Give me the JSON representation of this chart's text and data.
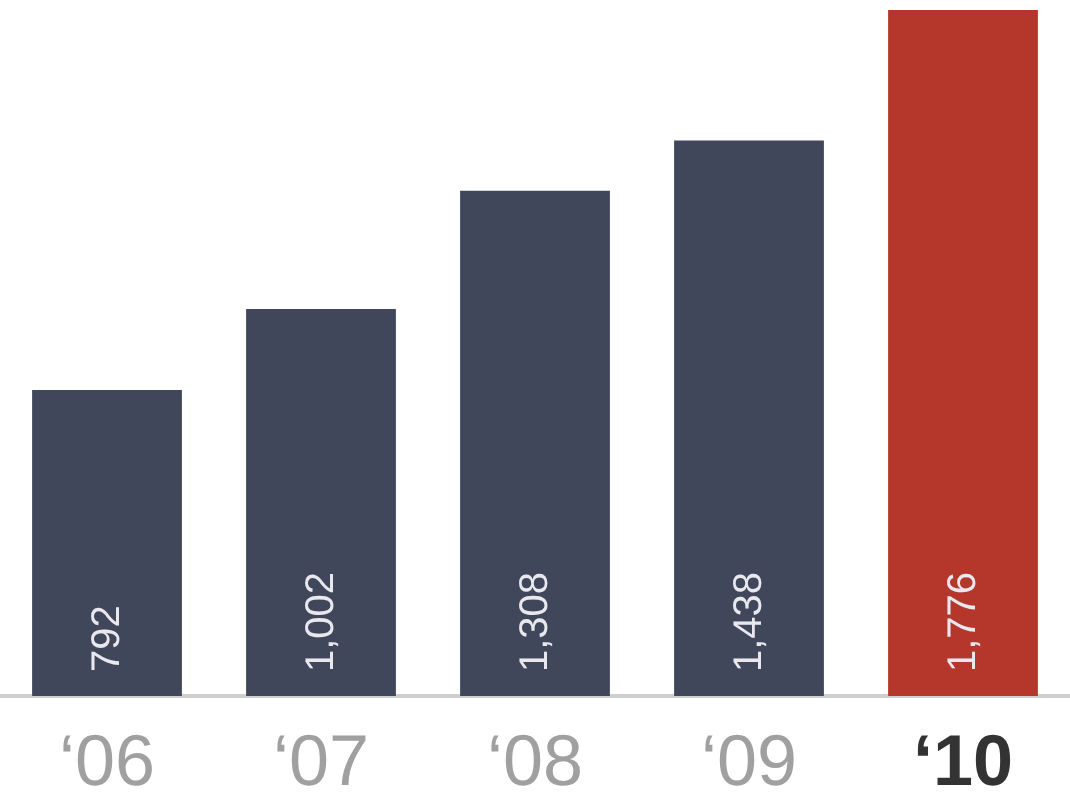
{
  "chart_data": {
    "type": "bar",
    "categories": [
      "‘06",
      "‘07",
      "‘08",
      "‘09",
      "‘10"
    ],
    "values": [
      792,
      1002,
      1308,
      1438,
      1776
    ],
    "value_labels": [
      "792",
      "1,002",
      "1,308",
      "1,438",
      "1,776"
    ],
    "colors": [
      "#41475a",
      "#41475a",
      "#41475a",
      "#41475a",
      "#b5372b"
    ]
  }
}
